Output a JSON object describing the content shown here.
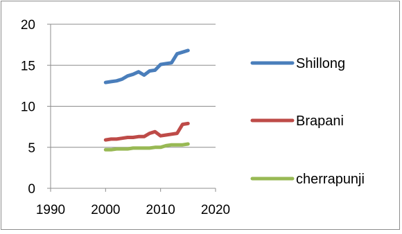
{
  "chart_data": {
    "type": "line",
    "title": "",
    "xlabel": "",
    "ylabel": "",
    "xlim": [
      1990,
      2020
    ],
    "ylim": [
      0,
      20
    ],
    "x_ticks": [
      1990,
      2000,
      2010,
      2020
    ],
    "y_ticks": [
      0,
      5,
      10,
      15,
      20
    ],
    "grid": "horizontal",
    "legend_position": "right",
    "x": [
      2000,
      2001,
      2002,
      2003,
      2004,
      2005,
      2006,
      2007,
      2008,
      2009,
      2010,
      2011,
      2012,
      2013,
      2014,
      2015
    ],
    "series": [
      {
        "name": "Shillong",
        "color": "#4a7ebb",
        "values": [
          12.9,
          13.0,
          13.1,
          13.3,
          13.7,
          13.9,
          14.2,
          13.8,
          14.3,
          14.4,
          15.1,
          15.2,
          15.3,
          16.4,
          16.6,
          16.8
        ]
      },
      {
        "name": "Brapani",
        "color": "#be4b48",
        "values": [
          5.9,
          6.0,
          6.0,
          6.1,
          6.2,
          6.2,
          6.3,
          6.3,
          6.7,
          6.9,
          6.4,
          6.5,
          6.6,
          6.7,
          7.8,
          7.9
        ]
      },
      {
        "name": "cherrapunji",
        "color": "#98b954",
        "values": [
          4.7,
          4.7,
          4.8,
          4.8,
          4.8,
          4.9,
          4.9,
          4.9,
          4.9,
          5.0,
          5.0,
          5.2,
          5.3,
          5.3,
          5.3,
          5.4
        ]
      }
    ]
  }
}
